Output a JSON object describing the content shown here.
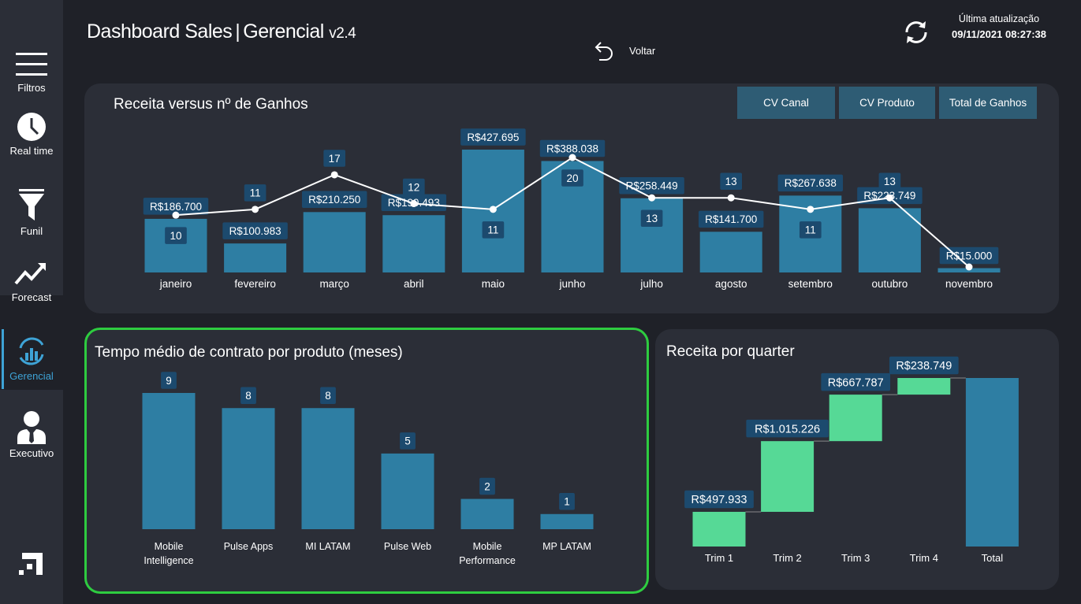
{
  "header": {
    "title_main": "Dashboard Sales",
    "title_sub": "Gerencial",
    "version": "v2.4",
    "back_label": "Voltar",
    "last_update_label": "Última atualização",
    "last_update_value": "09/11/2021 08:27:38"
  },
  "sidebar": {
    "items": [
      {
        "label": "Filtros",
        "icon": "menu-icon"
      },
      {
        "label": "Real time",
        "icon": "clock-icon"
      },
      {
        "label": "Funil",
        "icon": "funnel-icon"
      },
      {
        "label": "Forecast",
        "icon": "trend-icon"
      },
      {
        "label": "Gerencial",
        "icon": "gerencial-icon"
      },
      {
        "label": "Executivo",
        "icon": "executive-icon"
      }
    ],
    "logo": "brand-logo-icon"
  },
  "buttons": {
    "cv_canal": "CV Canal",
    "cv_produto": "CV Produto",
    "total_ganhos": "Total de Ganhos"
  },
  "colors": {
    "bar": "#2e7ea3",
    "label_bg": "#1c4a6e",
    "green": "#56d996",
    "total": "#2e7ea3",
    "highlight_border": "#2ecc40"
  },
  "chart_data": [
    {
      "type": "bar",
      "title": "Receita versus nº de Ganhos",
      "categories": [
        "janeiro",
        "fevereiro",
        "março",
        "abril",
        "maio",
        "junho",
        "julho",
        "agosto",
        "setembro",
        "outubro",
        "novembro"
      ],
      "series": [
        {
          "values": [
            186700,
            100983,
            210250,
            199493,
            427695,
            388038,
            258449,
            141700,
            267638,
            223749,
            15000
          ],
          "labels": [
            "R$186.700",
            "R$100.983",
            "R$210.250",
            "R$199.493",
            "R$427.695",
            "R$388.038",
            "R$258.449",
            "R$141.700",
            "R$267.638",
            "R$223.749",
            "R$15.000"
          ]
        },
        {
          "type": "line",
          "values": [
            10,
            11,
            17,
            12,
            11,
            20,
            13,
            13,
            11,
            13,
            1
          ],
          "labels": [
            "10",
            "11",
            "17",
            "12",
            "11",
            "20",
            "13",
            "13",
            "11",
            "13",
            ""
          ]
        }
      ]
    },
    {
      "type": "bar",
      "title": "Tempo médio de contrato por produto (meses)",
      "categories": [
        [
          "Mobile",
          "Intelligence"
        ],
        [
          "Pulse Apps"
        ],
        [
          "MI LATAM"
        ],
        [
          "Pulse Web"
        ],
        [
          "Mobile",
          "Performance"
        ],
        [
          "MP LATAM"
        ]
      ],
      "values": [
        9,
        8,
        8,
        5,
        2,
        1
      ]
    },
    {
      "type": "bar",
      "title": "Receita por quarter",
      "categories": [
        "Trim 1",
        "Trim 2",
        "Trim 3",
        "Trim 4",
        "Total"
      ],
      "values": [
        497933,
        1015226,
        667787,
        238749,
        2419695
      ],
      "labels": [
        "R$497.933",
        "R$1.015.226",
        "R$667.787",
        "R$238.749",
        ""
      ]
    }
  ]
}
